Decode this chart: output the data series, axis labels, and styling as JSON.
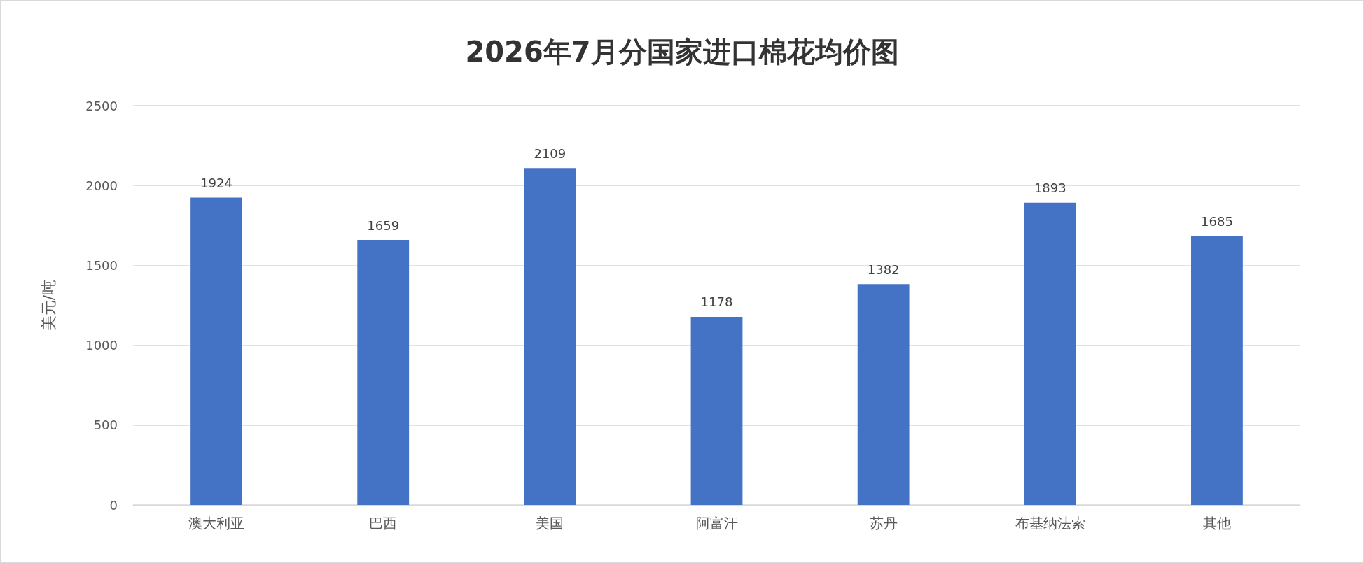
{
  "chart_data": {
    "type": "bar",
    "title": "2026年7月分国家进口棉花均价图",
    "ylabel": "美元/吨",
    "categories": [
      "澳大利亚",
      "巴西",
      "美国",
      "阿富汗",
      "苏丹",
      "布基纳法索",
      "其他"
    ],
    "values": [
      1924,
      1659,
      2109,
      1178,
      1382,
      1893,
      1685
    ],
    "color": "#4472c4",
    "ylim": [
      0,
      2500
    ],
    "yticks": [
      0,
      500,
      1000,
      1500,
      2000,
      2500
    ],
    "grid": "y",
    "data_labels": true
  }
}
